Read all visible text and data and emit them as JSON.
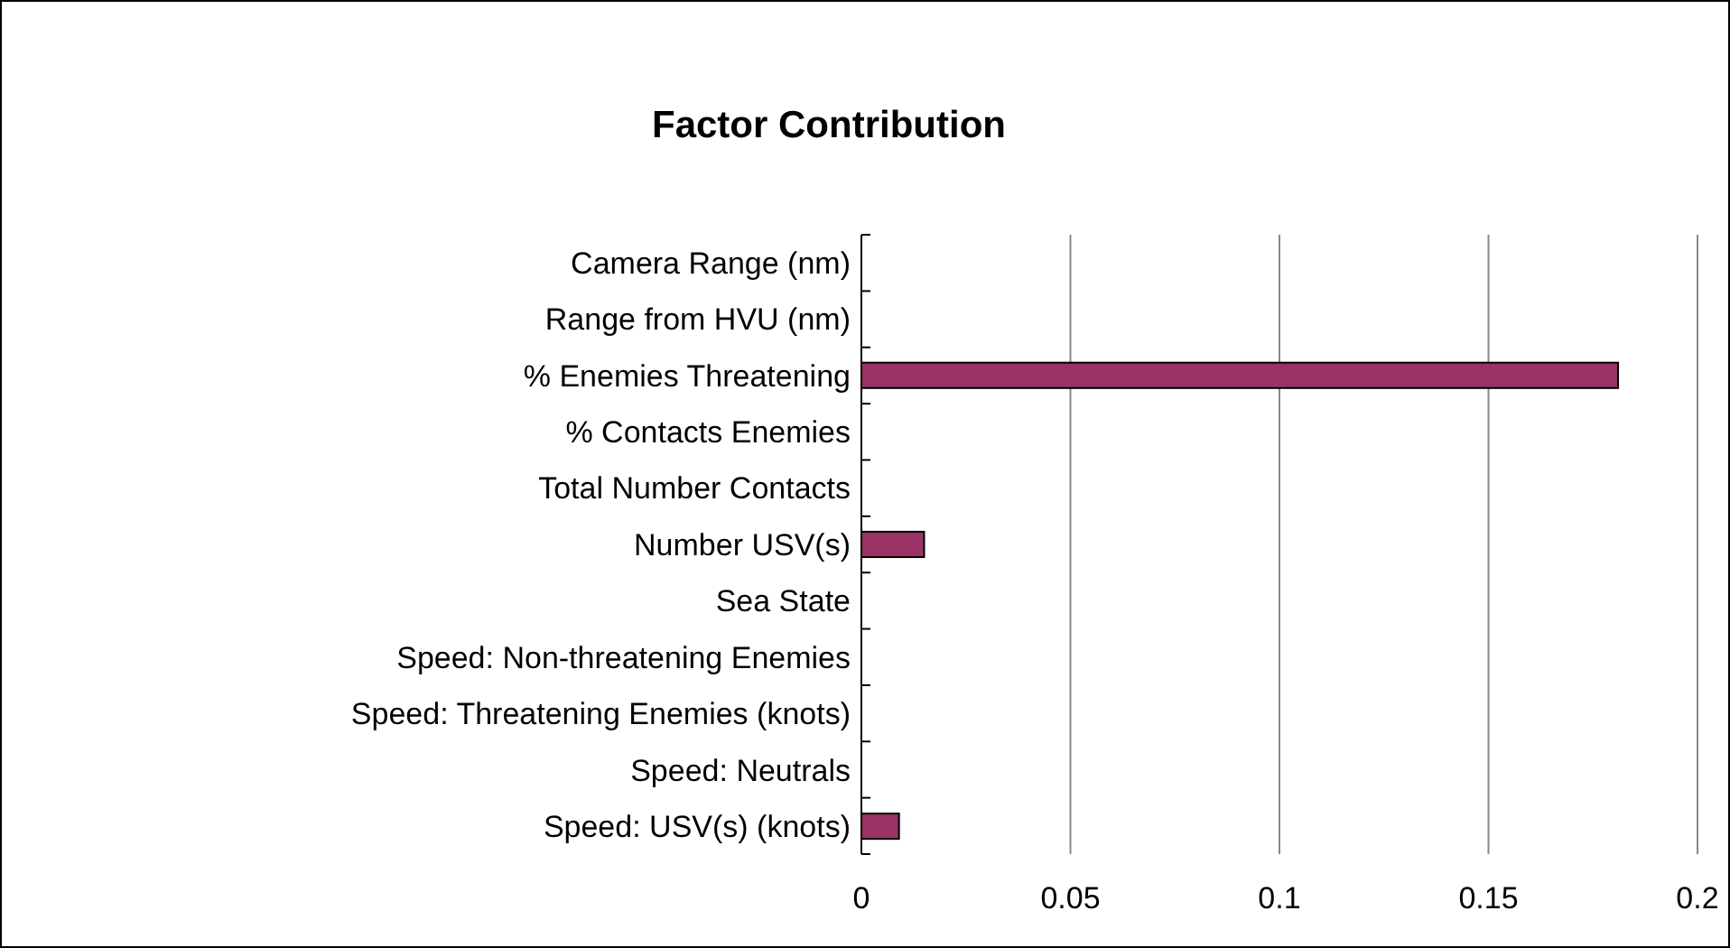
{
  "chart_data": {
    "type": "bar",
    "orientation": "horizontal",
    "title": "Factor Contribution",
    "categories": [
      "Camera Range (nm)",
      "Range from HVU (nm)",
      "% Enemies Threatening",
      "% Contacts Enemies",
      "Total Number Contacts",
      "Number USV(s)",
      "Sea State",
      "Speed: Non-threatening Enemies",
      "Speed: Threatening Enemies (knots)",
      "Speed: Neutrals",
      "Speed: USV(s) (knots)"
    ],
    "values": [
      0,
      0,
      0.181,
      0,
      0,
      0.015,
      0,
      0,
      0,
      0,
      0.009
    ],
    "color": "#993366",
    "xlim": [
      0,
      0.2
    ],
    "xticks": [
      0,
      0.05,
      0.1,
      0.15,
      0.2
    ],
    "grid": "x"
  }
}
